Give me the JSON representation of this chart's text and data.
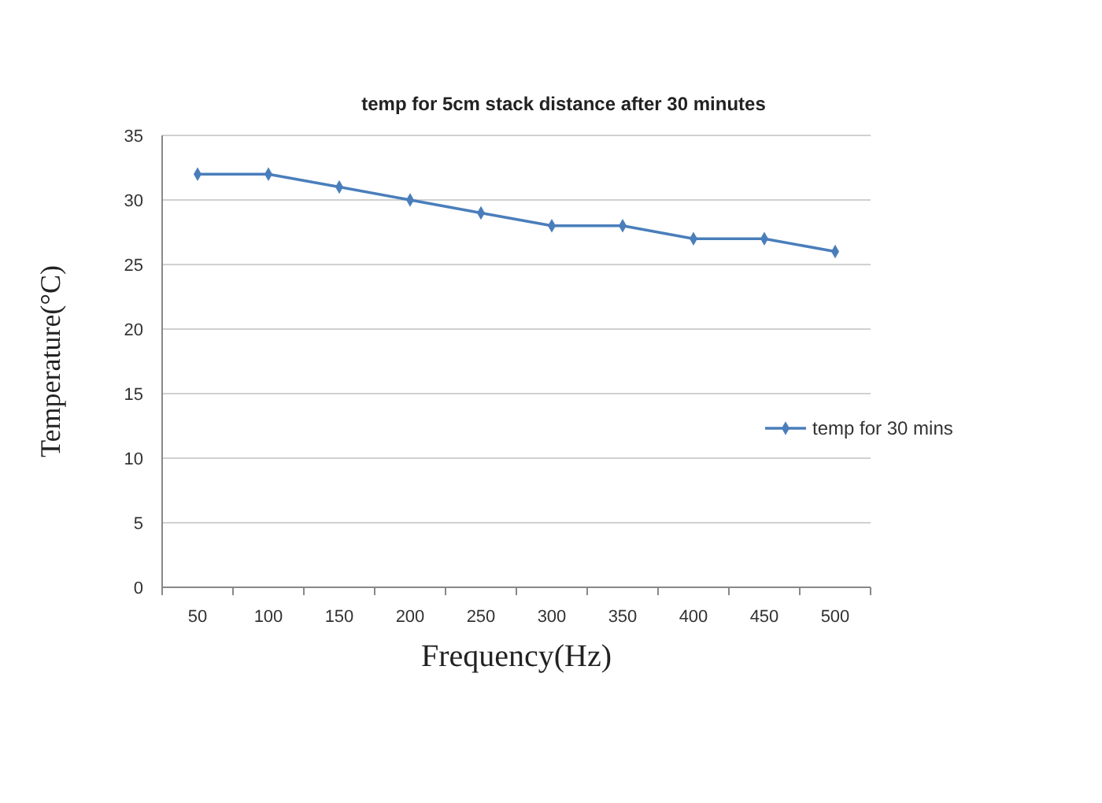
{
  "chart_data": {
    "type": "line",
    "title": "temp for 5cm stack distance after 30 minutes",
    "xlabel": "Frequency(Hz)",
    "ylabel": "Temperature(°C)",
    "categories": [
      "50",
      "100",
      "150",
      "200",
      "250",
      "300",
      "350",
      "400",
      "450",
      "500"
    ],
    "series": [
      {
        "name": "temp for 30 mins",
        "color": "#4a7ebb",
        "values": [
          32,
          32,
          31,
          30,
          29,
          28,
          28,
          27,
          27,
          26
        ]
      }
    ],
    "ylim": [
      0,
      35
    ],
    "yticks": [
      0,
      5,
      10,
      15,
      20,
      25,
      30,
      35
    ],
    "grid": "y",
    "legend": "right",
    "marker": "diamond"
  }
}
